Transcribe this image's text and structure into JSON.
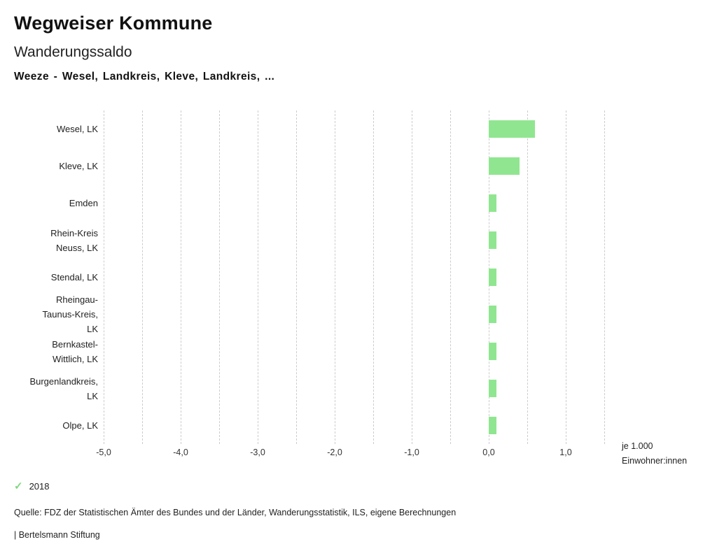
{
  "header": {
    "title": "Wegweiser Kommune",
    "subtitle": "Wanderungssaldo",
    "selection": "Weeze - Wesel, Landkreis, Kleve, Landkreis, ..."
  },
  "chart_data": {
    "type": "bar",
    "orientation": "horizontal",
    "title": "Wanderungssaldo",
    "categories": [
      "Wesel, LK",
      "Kleve, LK",
      "Emden",
      "Rhein-Kreis Neuss, LK",
      "Stendal, LK",
      "Rheingau-Taunus-Kreis, LK",
      "Bernkastel-Wittlich, LK",
      "Burgenlandkreis, LK",
      "Olpe, LK"
    ],
    "category_lines": [
      [
        "Wesel, LK"
      ],
      [
        "Kleve, LK"
      ],
      [
        "Emden"
      ],
      [
        "Rhein-Kreis",
        "Neuss, LK"
      ],
      [
        "Stendal, LK"
      ],
      [
        "Rheingau-",
        "Taunus-Kreis,",
        "LK"
      ],
      [
        "Bernkastel-",
        "Wittlich, LK"
      ],
      [
        "Burgenlandkreis,",
        "LK"
      ],
      [
        "Olpe, LK"
      ]
    ],
    "series": [
      {
        "name": "2018",
        "values": [
          0.6,
          0.4,
          0.1,
          0.1,
          0.1,
          0.1,
          0.1,
          0.1,
          0.1
        ]
      }
    ],
    "xlim": [
      -5.0,
      1.5
    ],
    "x_ticks": [
      -5.0,
      -4.0,
      -3.0,
      -2.0,
      -1.0,
      0.0,
      1.0
    ],
    "x_tick_labels": [
      "-5,0",
      "-4,0",
      "-3,0",
      "-2,0",
      "-1,0",
      "0,0",
      "1,0"
    ],
    "gridline_step": 0.5,
    "grid": true,
    "xlabel": "je 1.000 Einwohner:innen",
    "unit_label_lines": [
      "je 1.000",
      "Einwohner:innen"
    ],
    "bar_color": "#90e690",
    "gridline_color": "#cccccc"
  },
  "legend": {
    "check_icon": "✓",
    "check_color": "#7fd97f",
    "year": "2018"
  },
  "footer": {
    "source": "Quelle: FDZ der Statistischen Ämter des Bundes und der Länder, Wanderungsstatistik, ILS, eigene Berechnungen",
    "brand": "| Bertelsmann Stiftung"
  }
}
